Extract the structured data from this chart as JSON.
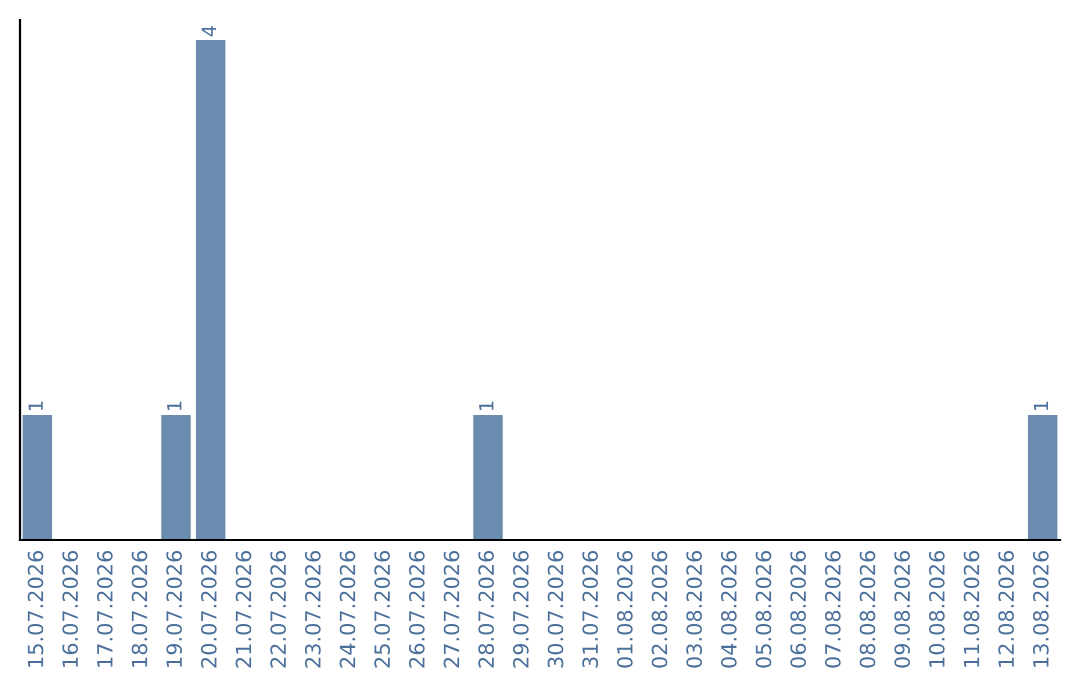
{
  "chart_data": {
    "type": "bar",
    "categories": [
      "15.07.2026",
      "16.07.2026",
      "17.07.2026",
      "18.07.2026",
      "19.07.2026",
      "20.07.2026",
      "21.07.2026",
      "22.07.2026",
      "23.07.2026",
      "24.07.2026",
      "25.07.2026",
      "26.07.2026",
      "27.07.2026",
      "28.07.2026",
      "29.07.2026",
      "30.07.2026",
      "31.07.2026",
      "01.08.2026",
      "02.08.2026",
      "03.08.2026",
      "04.08.2026",
      "05.08.2026",
      "06.08.2026",
      "07.08.2026",
      "08.08.2026",
      "09.08.2026",
      "10.08.2026",
      "11.08.2026",
      "12.08.2026",
      "13.08.2026"
    ],
    "values": [
      1,
      0,
      0,
      0,
      1,
      4,
      0,
      0,
      0,
      0,
      0,
      0,
      0,
      1,
      0,
      0,
      0,
      0,
      0,
      0,
      0,
      0,
      0,
      0,
      0,
      0,
      0,
      0,
      0,
      1
    ],
    "value_labels": [
      "1",
      null,
      null,
      null,
      "1",
      "4",
      null,
      null,
      null,
      null,
      null,
      null,
      null,
      "1",
      null,
      null,
      null,
      null,
      null,
      null,
      null,
      null,
      null,
      null,
      null,
      null,
      null,
      null,
      null,
      "1"
    ],
    "color": "#6b8cae",
    "ylim": [
      0,
      4.16
    ],
    "tick_labels": "x",
    "grid": false,
    "legend": false
  }
}
